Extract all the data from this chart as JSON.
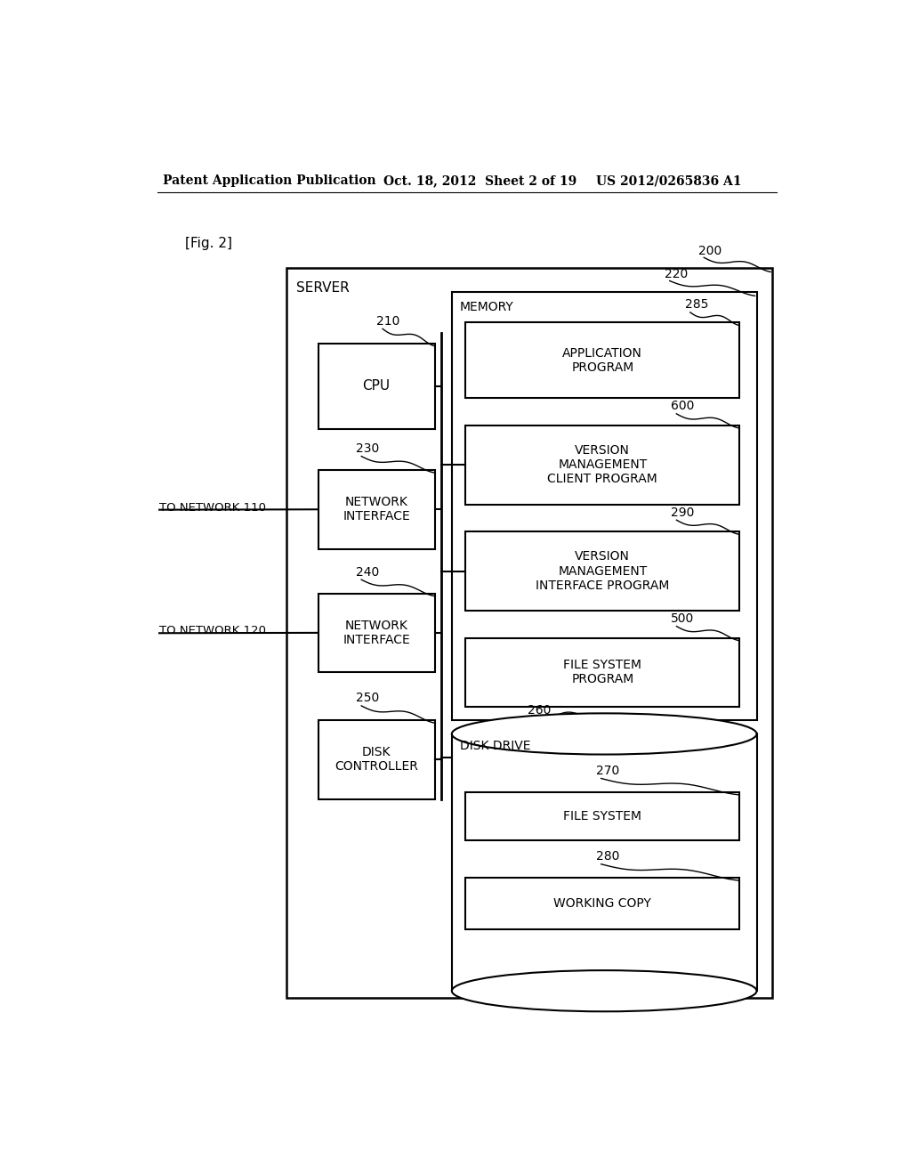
{
  "bg_color": "#ffffff",
  "header_left": "Patent Application Publication",
  "header_mid": "Oct. 18, 2012  Sheet 2 of 19",
  "header_right": "US 2012/0265836 A1",
  "fig_label": "[Fig. 2]",
  "server_label": "SERVER",
  "memory_label": "MEMORY",
  "cpu_text": "CPU",
  "ni1_text": "NETWORK\nINTERFACE",
  "ni2_text": "NETWORK\nINTERFACE",
  "dc_text": "DISK\nCONTROLLER",
  "app_text": "APPLICATION\nPROGRAM",
  "vmc_text": "VERSION\nMANAGEMENT\nCLIENT PROGRAM",
  "vmi_text": "VERSION\nMANAGEMENT\nINTERFACE PROGRAM",
  "fsp_text": "FILE SYSTEM\nPROGRAM",
  "dd_text": "DISK DRIVE",
  "fs_text": "FILE SYSTEM",
  "wc_text": "WORKING COPY",
  "net110_text": "TO NETWORK 110",
  "net120_text": "TO NETWORK 120",
  "n200": "200",
  "n210": "210",
  "n220": "220",
  "n230": "230",
  "n240": "240",
  "n250": "250",
  "n260": "260",
  "n270": "270",
  "n280": "280",
  "n285": "285",
  "n290": "290",
  "n500": "500",
  "n600": "600"
}
